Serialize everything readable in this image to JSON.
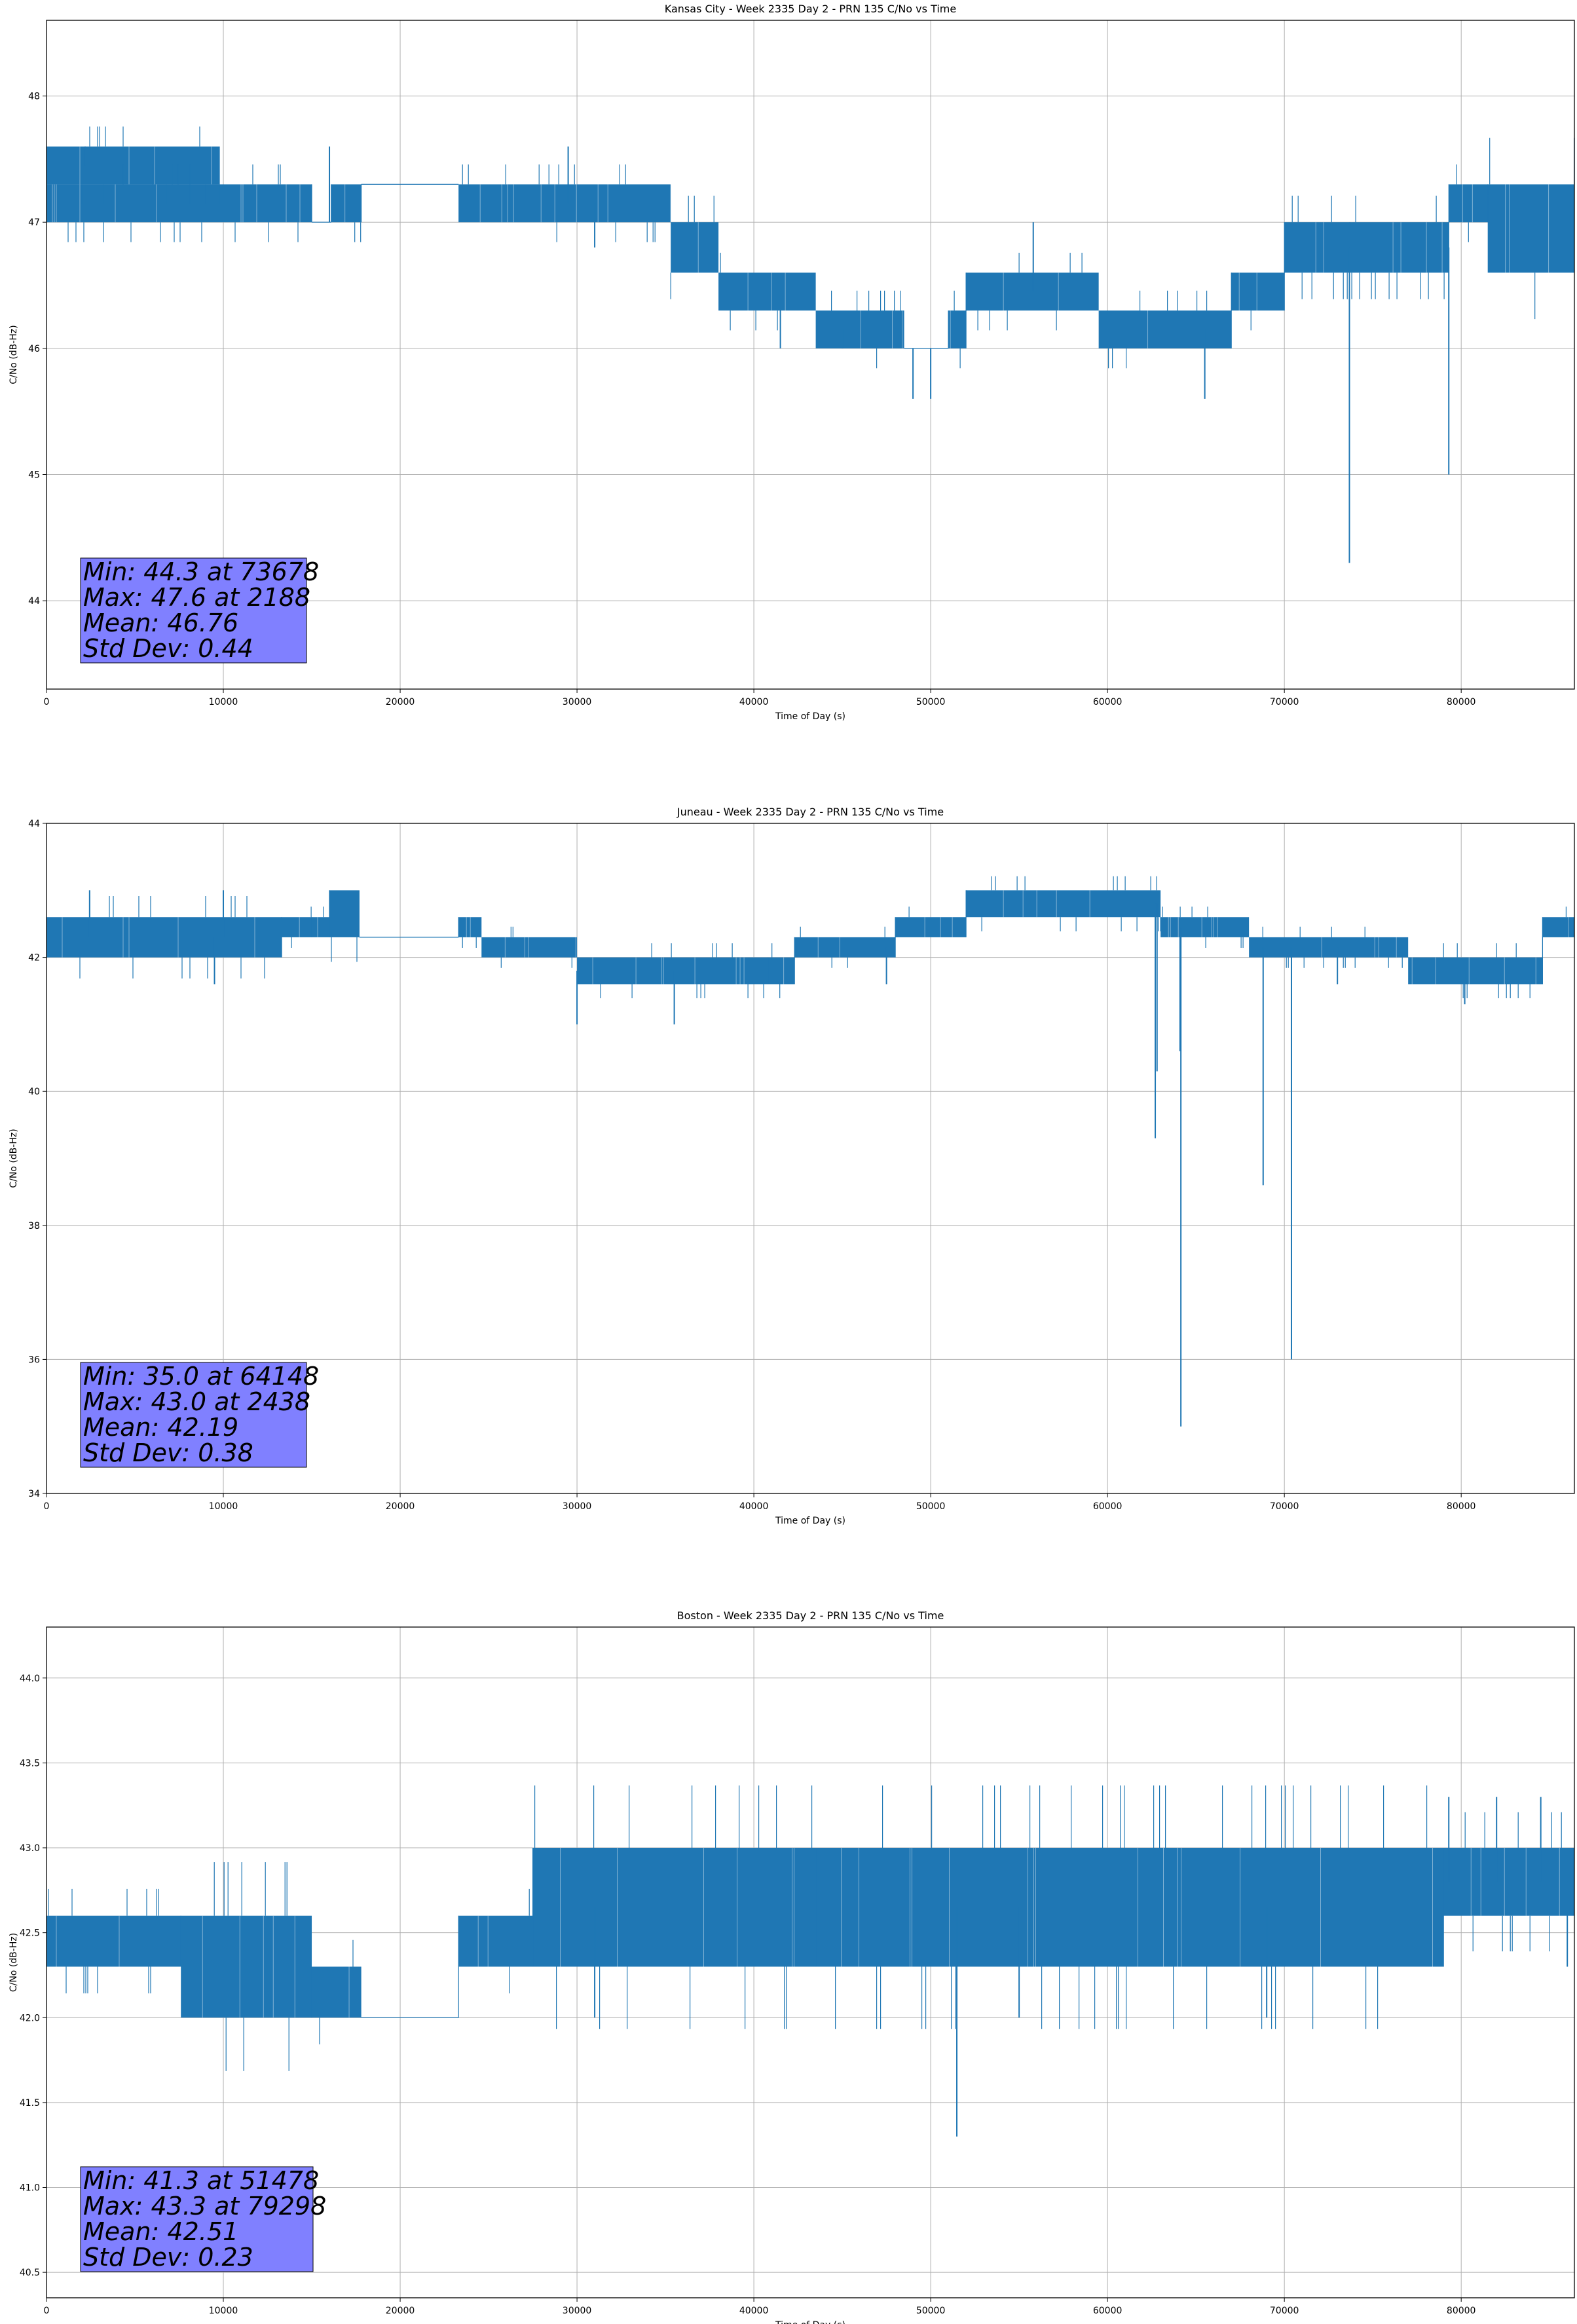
{
  "colors": {
    "series": "#1f77b4",
    "stats_box": "#8080ff",
    "grid": "#b0b0b0",
    "axis": "#000000",
    "background": "#ffffff"
  },
  "chart_data": [
    {
      "type": "line",
      "title": "Kansas City - Week 2335 Day 2 - PRN 135 C/No vs Time",
      "xlabel": "Time of Day (s)",
      "ylabel": "C/No (dB-Hz)",
      "xlim": [
        0,
        86400
      ],
      "ylim": [
        43.3,
        48.6
      ],
      "xticks": [
        0,
        10000,
        20000,
        30000,
        40000,
        50000,
        60000,
        70000,
        80000
      ],
      "xtick_labels": [
        "0",
        "10000",
        "20000",
        "30000",
        "40000",
        "50000",
        "60000",
        "70000",
        "80000"
      ],
      "yticks": [
        44,
        45,
        46,
        47,
        48
      ],
      "ytick_labels": [
        "44",
        "45",
        "46",
        "47",
        "48"
      ],
      "grid": true,
      "series": [
        {
          "bands": [
            {
              "x0": 0,
              "x1": 15000,
              "lo": 47.0,
              "hi": 47.3
            },
            {
              "x0": 0,
              "x1": 9800,
              "lo": 47.3,
              "hi": 47.6
            },
            {
              "x0": 15000,
              "x1": 16100,
              "lo": 47.0,
              "hi": 47.0
            },
            {
              "x0": 16100,
              "x1": 17800,
              "lo": 47.0,
              "hi": 47.3
            },
            {
              "x0": 17800,
              "x1": 23300,
              "lo": 47.3,
              "hi": 47.3
            },
            {
              "x0": 23300,
              "x1": 35300,
              "lo": 47.0,
              "hi": 47.3
            },
            {
              "x0": 35300,
              "x1": 38000,
              "lo": 46.6,
              "hi": 47.0
            },
            {
              "x0": 38000,
              "x1": 43500,
              "lo": 46.3,
              "hi": 46.6
            },
            {
              "x0": 43500,
              "x1": 48500,
              "lo": 46.0,
              "hi": 46.3
            },
            {
              "x0": 48500,
              "x1": 51000,
              "lo": 46.0,
              "hi": 46.0
            },
            {
              "x0": 51000,
              "x1": 52000,
              "lo": 46.0,
              "hi": 46.3
            },
            {
              "x0": 52000,
              "x1": 59500,
              "lo": 46.3,
              "hi": 46.6
            },
            {
              "x0": 59500,
              "x1": 67000,
              "lo": 46.0,
              "hi": 46.3
            },
            {
              "x0": 67000,
              "x1": 70000,
              "lo": 46.3,
              "hi": 46.6
            },
            {
              "x0": 70000,
              "x1": 73700,
              "lo": 46.6,
              "hi": 47.0
            },
            {
              "x0": 73700,
              "x1": 79300,
              "lo": 46.6,
              "hi": 47.0
            },
            {
              "x0": 79300,
              "x1": 81500,
              "lo": 47.0,
              "hi": 47.3
            },
            {
              "x0": 81500,
              "x1": 86400,
              "lo": 46.6,
              "hi": 47.3
            }
          ],
          "spikes": [
            [
              73678,
              44.3
            ],
            [
              79298,
              45.0
            ],
            [
              65500,
              45.6
            ],
            [
              49000,
              45.6
            ],
            [
              50000,
              45.6
            ],
            [
              55800,
              47.0
            ],
            [
              2188,
              47.6
            ],
            [
              16000,
              47.6
            ],
            [
              29500,
              47.6
            ],
            [
              31000,
              46.8
            ],
            [
              38800,
              46.3
            ],
            [
              45000,
              46.0
            ],
            [
              41500,
              46.0
            ]
          ]
        }
      ],
      "stats": [
        "Min: 44.3 at 73678",
        "Max: 47.6 at 2188",
        "Mean: 46.76",
        "Std Dev: 0.44"
      ]
    },
    {
      "type": "line",
      "title": "Juneau - Week 2335 Day 2 - PRN 135 C/No vs Time",
      "xlabel": "Time of Day (s)",
      "ylabel": "C/No (dB-Hz)",
      "xlim": [
        0,
        86400
      ],
      "ylim": [
        34,
        44
      ],
      "xticks": [
        0,
        10000,
        20000,
        30000,
        40000,
        50000,
        60000,
        70000,
        80000
      ],
      "xtick_labels": [
        "0",
        "10000",
        "20000",
        "30000",
        "40000",
        "50000",
        "60000",
        "70000",
        "80000"
      ],
      "yticks": [
        34,
        36,
        38,
        40,
        42,
        44
      ],
      "ytick_labels": [
        "34",
        "36",
        "38",
        "40",
        "42",
        "44"
      ],
      "grid": true,
      "series": [
        {
          "bands": [
            {
              "x0": 0,
              "x1": 13300,
              "lo": 42.0,
              "hi": 42.6
            },
            {
              "x0": 13300,
              "x1": 15000,
              "lo": 42.3,
              "hi": 42.6
            },
            {
              "x0": 15000,
              "x1": 16000,
              "lo": 42.3,
              "hi": 42.6
            },
            {
              "x0": 16000,
              "x1": 17700,
              "lo": 42.3,
              "hi": 43.0
            },
            {
              "x0": 17700,
              "x1": 23300,
              "lo": 42.3,
              "hi": 42.3
            },
            {
              "x0": 23300,
              "x1": 24600,
              "lo": 42.3,
              "hi": 42.6
            },
            {
              "x0": 24600,
              "x1": 30000,
              "lo": 42.0,
              "hi": 42.3
            },
            {
              "x0": 30000,
              "x1": 40800,
              "lo": 41.6,
              "hi": 42.0
            },
            {
              "x0": 40800,
              "x1": 42300,
              "lo": 41.6,
              "hi": 42.0
            },
            {
              "x0": 42300,
              "x1": 48000,
              "lo": 42.0,
              "hi": 42.3
            },
            {
              "x0": 48000,
              "x1": 52000,
              "lo": 42.3,
              "hi": 42.6
            },
            {
              "x0": 52000,
              "x1": 63000,
              "lo": 42.6,
              "hi": 43.0
            },
            {
              "x0": 63000,
              "x1": 68000,
              "lo": 42.3,
              "hi": 42.6
            },
            {
              "x0": 68000,
              "x1": 77000,
              "lo": 42.0,
              "hi": 42.3
            },
            {
              "x0": 77000,
              "x1": 84600,
              "lo": 41.6,
              "hi": 42.0
            },
            {
              "x0": 84600,
              "x1": 86400,
              "lo": 42.3,
              "hi": 42.6
            }
          ],
          "spikes": [
            [
              64148,
              35.0
            ],
            [
              70400,
              36.0
            ],
            [
              62700,
              39.3
            ],
            [
              68800,
              38.6
            ],
            [
              64100,
              40.6
            ],
            [
              62800,
              40.3
            ],
            [
              10000,
              43.0
            ],
            [
              2438,
              43.0
            ],
            [
              30000,
              41.0
            ],
            [
              35500,
              41.0
            ],
            [
              9500,
              41.6
            ],
            [
              47500,
              41.6
            ],
            [
              73000,
              41.6
            ],
            [
              80200,
              41.3
            ]
          ]
        }
      ],
      "stats": [
        "Min: 35.0 at 64148",
        "Max: 43.0 at 2438",
        "Mean: 42.19",
        "Std Dev: 0.38"
      ]
    },
    {
      "type": "line",
      "title": "Boston - Week 2335 Day 2 - PRN 135 C/No vs Time",
      "xlabel": "Time of Day (s)",
      "ylabel": "C/No (dB-Hz)",
      "xlim": [
        0,
        86400
      ],
      "ylim": [
        40.35,
        44.3
      ],
      "xticks": [
        0,
        10000,
        20000,
        30000,
        40000,
        50000,
        60000,
        70000,
        80000
      ],
      "xtick_labels": [
        "0",
        "10000",
        "20000",
        "30000",
        "40000",
        "50000",
        "60000",
        "70000",
        "80000"
      ],
      "yticks": [
        40.5,
        41.0,
        41.5,
        42.0,
        42.5,
        43.0,
        43.5,
        44.0
      ],
      "ytick_labels": [
        "40.5",
        "41.0",
        "41.5",
        "42.0",
        "42.5",
        "43.0",
        "43.5",
        "44.0"
      ],
      "grid": true,
      "series": [
        {
          "bands": [
            {
              "x0": 0,
              "x1": 7600,
              "lo": 42.3,
              "hi": 42.6
            },
            {
              "x0": 7600,
              "x1": 15000,
              "lo": 42.0,
              "hi": 42.6
            },
            {
              "x0": 15000,
              "x1": 17800,
              "lo": 42.0,
              "hi": 42.3
            },
            {
              "x0": 17800,
              "x1": 23300,
              "lo": 42.0,
              "hi": 42.0
            },
            {
              "x0": 23300,
              "x1": 27500,
              "lo": 42.3,
              "hi": 42.6
            },
            {
              "x0": 27500,
              "x1": 43500,
              "lo": 42.3,
              "hi": 43.0
            },
            {
              "x0": 43500,
              "x1": 79000,
              "lo": 42.3,
              "hi": 43.0
            },
            {
              "x0": 79000,
              "x1": 86400,
              "lo": 42.6,
              "hi": 43.0
            }
          ],
          "spikes": [
            [
              51478,
              41.3
            ],
            [
              79298,
              43.3
            ],
            [
              82000,
              43.3
            ],
            [
              84500,
              43.3
            ],
            [
              86000,
              42.3
            ],
            [
              69000,
              42.0
            ],
            [
              55000,
              42.0
            ],
            [
              31000,
              42.0
            ]
          ]
        }
      ],
      "stats": [
        "Min: 41.3 at 51478",
        "Max: 43.3 at 79298",
        "Mean: 42.51",
        "Std Dev: 0.23"
      ]
    }
  ]
}
